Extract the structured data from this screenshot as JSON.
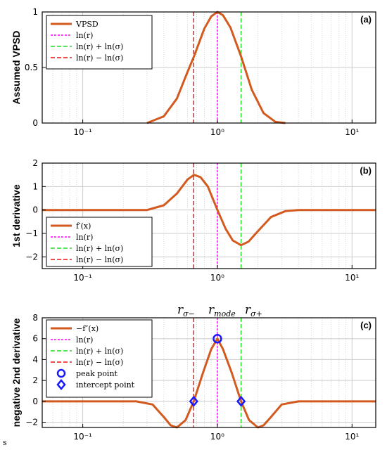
{
  "colors": {
    "curve": "#d35a1f",
    "mode_line": "#ff00ff",
    "plus_line": "#22dd22",
    "minus_line": "#ee1111",
    "marker": "#1a1aff",
    "grid": "#cccccc"
  },
  "stray_text": "s",
  "top_labels": {
    "minus": {
      "base": "r",
      "sub": "σ−"
    },
    "mode": {
      "base": "r",
      "sub": "mode"
    },
    "plus": {
      "base": "r",
      "sub": "σ+"
    }
  },
  "chart_data": [
    {
      "type": "line",
      "panel_label": "(a)",
      "ylabel": "Assumed VPSD",
      "xscale": "log",
      "xlim": [
        0.05,
        15
      ],
      "ylim": [
        0,
        1
      ],
      "xtick_labels": [
        "10⁻¹",
        "10⁰",
        "10¹"
      ],
      "xtick_values": [
        0.1,
        1,
        10
      ],
      "ytick_values": [
        0,
        0.5,
        1
      ],
      "ytick_labels": [
        "0",
        "0.5",
        "1"
      ],
      "grid": true,
      "legend_position": "top-left",
      "series": [
        {
          "name": "VPSD",
          "x": [
            0.3,
            0.4,
            0.5,
            0.6,
            0.67,
            0.8,
            0.9,
            1.0,
            1.1,
            1.25,
            1.5,
            1.8,
            2.2,
            2.7,
            3.2
          ],
          "y": [
            0.0,
            0.06,
            0.22,
            0.46,
            0.6,
            0.85,
            0.96,
            1.0,
            0.97,
            0.86,
            0.6,
            0.3,
            0.09,
            0.01,
            0.0
          ]
        },
        {
          "name": "ln(r)",
          "vline": 1.0
        },
        {
          "name": "ln(r) + ln(σ)",
          "vline": 1.5
        },
        {
          "name": "ln(r) − ln(σ)",
          "vline": 0.667
        }
      ]
    },
    {
      "type": "line",
      "panel_label": "(b)",
      "ylabel": "1st derivative",
      "xscale": "log",
      "xlim": [
        0.05,
        15
      ],
      "ylim": [
        -2.5,
        2
      ],
      "xtick_labels": [
        "10⁻¹",
        "10⁰",
        "10¹"
      ],
      "xtick_values": [
        0.1,
        1,
        10
      ],
      "ytick_values": [
        -2,
        -1,
        0,
        1,
        2
      ],
      "ytick_labels": [
        "−2",
        "−1",
        "0",
        "1",
        "2"
      ],
      "grid": true,
      "legend_position": "bottom-left",
      "series": [
        {
          "name": "f′(x)",
          "x": [
            0.05,
            0.3,
            0.4,
            0.5,
            0.6,
            0.67,
            0.75,
            0.85,
            1.0,
            1.15,
            1.3,
            1.5,
            1.7,
            2.0,
            2.5,
            3.2,
            4.0,
            15
          ],
          "y": [
            0,
            0,
            0.2,
            0.7,
            1.3,
            1.5,
            1.4,
            1.0,
            0.0,
            -0.8,
            -1.3,
            -1.5,
            -1.35,
            -0.9,
            -0.3,
            -0.05,
            0,
            0
          ]
        },
        {
          "name": "ln(r)",
          "vline": 1.0
        },
        {
          "name": "ln(r) + ln(σ)",
          "vline": 1.5
        },
        {
          "name": "ln(r) − ln(σ)",
          "vline": 0.667
        }
      ]
    },
    {
      "type": "line",
      "panel_label": "(c)",
      "ylabel": "negative 2nd derivative",
      "xscale": "log",
      "xlim": [
        0.05,
        15
      ],
      "ylim": [
        -2.5,
        8
      ],
      "xtick_labels": [
        "10⁻¹",
        "10⁰",
        "10¹"
      ],
      "xtick_values": [
        0.1,
        1,
        10
      ],
      "ytick_values": [
        -2,
        0,
        2,
        4,
        6,
        8
      ],
      "ytick_labels": [
        "−2",
        "0",
        "2",
        "4",
        "6",
        "8"
      ],
      "grid": true,
      "legend_position": "top-left",
      "series": [
        {
          "name": "−f″(x)",
          "x": [
            0.05,
            0.25,
            0.33,
            0.4,
            0.45,
            0.5,
            0.58,
            0.667,
            0.78,
            0.9,
            1.0,
            1.1,
            1.28,
            1.5,
            1.72,
            2.0,
            2.2,
            2.5,
            3.0,
            4.0,
            15
          ],
          "y": [
            0,
            0,
            -0.3,
            -1.5,
            -2.3,
            -2.5,
            -1.8,
            0.0,
            2.7,
            5.0,
            6.0,
            5.0,
            2.7,
            0.0,
            -1.8,
            -2.5,
            -2.3,
            -1.5,
            -0.3,
            0,
            0
          ]
        },
        {
          "name": "ln(r)",
          "vline": 1.0
        },
        {
          "name": "ln(r) + ln(σ)",
          "vline": 1.5
        },
        {
          "name": "ln(r) − ln(σ)",
          "vline": 0.667
        },
        {
          "name": "peak point",
          "points": [
            [
              1.0,
              6.0
            ]
          ]
        },
        {
          "name": "intercept point",
          "points": [
            [
              0.667,
              0.0
            ],
            [
              1.5,
              0.0
            ]
          ]
        }
      ]
    }
  ]
}
